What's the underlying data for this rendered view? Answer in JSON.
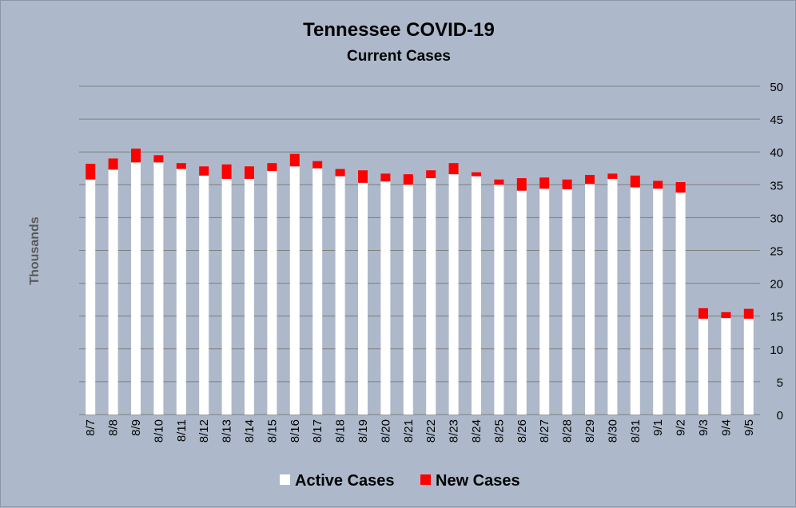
{
  "chart_data": {
    "type": "bar",
    "stacked": true,
    "title": "Tennessee COVID-19",
    "subtitle": "Current Cases",
    "ylabel": "Thousands",
    "xlabel": "",
    "ylim": [
      0,
      50
    ],
    "yticks": [
      0,
      5,
      10,
      15,
      20,
      25,
      30,
      35,
      40,
      45,
      50
    ],
    "y_axis_side": "right",
    "grid": true,
    "legend_position": "bottom",
    "categories": [
      "8/7",
      "8/8",
      "8/9",
      "8/10",
      "8/11",
      "8/12",
      "8/13",
      "8/14",
      "8/15",
      "8/16",
      "8/17",
      "8/18",
      "8/19",
      "8/20",
      "8/21",
      "8/22",
      "8/23",
      "8/24",
      "8/25",
      "8/26",
      "8/27",
      "8/28",
      "8/29",
      "8/30",
      "8/31",
      "9/1",
      "9/2",
      "9/3",
      "9/4",
      "9/5"
    ],
    "series": [
      {
        "name": "Active Cases",
        "color": "#ffffff",
        "values": [
          35.8,
          37.3,
          38.4,
          38.4,
          37.4,
          36.4,
          35.9,
          35.9,
          37.1,
          37.8,
          37.5,
          36.3,
          35.3,
          35.5,
          35.0,
          36.0,
          36.6,
          36.3,
          35.0,
          34.1,
          34.4,
          34.3,
          35.1,
          35.9,
          34.6,
          34.4,
          33.8,
          14.6,
          14.7,
          14.6
        ]
      },
      {
        "name": "New Cases",
        "color": "#ff0000",
        "values": [
          2.4,
          1.7,
          2.1,
          1.1,
          0.9,
          1.4,
          2.2,
          1.9,
          1.2,
          1.9,
          1.1,
          1.1,
          1.9,
          1.2,
          1.6,
          1.2,
          1.7,
          0.6,
          0.8,
          1.9,
          1.7,
          1.5,
          1.4,
          0.8,
          1.8,
          1.2,
          1.6,
          1.6,
          0.9,
          1.5
        ]
      }
    ]
  }
}
